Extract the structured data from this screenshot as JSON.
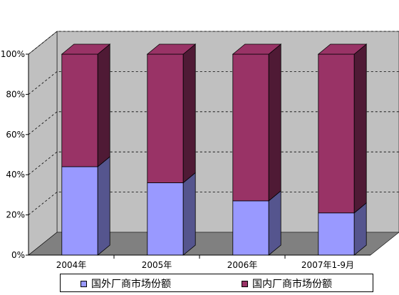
{
  "chart_data": {
    "type": "bar",
    "stacked": true,
    "three_d": true,
    "categories": [
      "2004年",
      "2005年",
      "2006年",
      "2007年1-9月"
    ],
    "series": [
      {
        "name": "国外厂商市场份额",
        "values": [
          44,
          36,
          27,
          21
        ],
        "color": "#9999ff",
        "side_color": "#55558e"
      },
      {
        "name": "国内厂商市场份额",
        "values": [
          56,
          64,
          73,
          79
        ],
        "color": "#993366",
        "side_color": "#4f1a35"
      }
    ],
    "y_ticks": [
      "0%",
      "20%",
      "40%",
      "60%",
      "80%",
      "100%"
    ],
    "ylim": [
      0,
      100
    ],
    "grid": true,
    "legend": "bottom",
    "colors": {
      "wall": "#c0c0c0",
      "floor": "#808080",
      "gridline": "#000000"
    }
  }
}
